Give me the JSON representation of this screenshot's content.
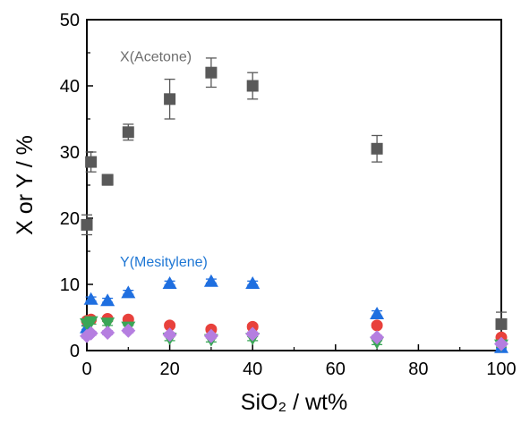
{
  "chart_data": {
    "type": "scatter",
    "xlabel": "SiO₂ / wt%",
    "ylabel": "X or Y / %",
    "xlim": [
      0,
      100
    ],
    "ylim": [
      0,
      50
    ],
    "xticks": [
      0,
      20,
      40,
      60,
      80,
      100
    ],
    "yticks": [
      0,
      10,
      20,
      30,
      40,
      50
    ],
    "grid": false,
    "annotations": [
      {
        "text": "X(Acetone)",
        "color": "#6d6d6d",
        "series": "X(Acetone)"
      },
      {
        "text": "Y(Mesitylene)",
        "color": "#1f77d4",
        "series": "Y(Mesitylene)"
      }
    ],
    "series": [
      {
        "name": "X(Acetone)",
        "marker": "square",
        "color": "#595959",
        "x": [
          0,
          1,
          5,
          10,
          20,
          30,
          40,
          70,
          100
        ],
        "y": [
          19.0,
          28.5,
          25.8,
          33.0,
          38.0,
          42.0,
          40.0,
          30.5,
          4.0
        ],
        "err": [
          1.5,
          1.5,
          0.8,
          1.2,
          3.0,
          2.2,
          2.0,
          2.0,
          1.8
        ]
      },
      {
        "name": "Y(Mesitylene)",
        "marker": "triangle-up",
        "color": "#1f6fe0",
        "x": [
          0,
          1,
          5,
          10,
          20,
          30,
          40,
          70,
          100
        ],
        "y": [
          3.5,
          7.8,
          7.6,
          8.8,
          10.2,
          10.5,
          10.2,
          5.6,
          0.5
        ],
        "err": [
          0.3,
          0.3,
          0.3,
          0.3,
          0.3,
          0.3,
          0.3,
          0.4,
          0.2
        ]
      },
      {
        "marker": "circle",
        "color": "#e8413c",
        "x": [
          0,
          1,
          5,
          10,
          20,
          30,
          40,
          70,
          100
        ],
        "y": [
          4.5,
          4.7,
          4.8,
          4.7,
          3.8,
          3.2,
          3.6,
          3.8,
          2.0
        ],
        "err": [
          0.3,
          0.3,
          0.3,
          0.3,
          0.3,
          0.3,
          0.3,
          0.3,
          0.3
        ]
      },
      {
        "marker": "triangle-down",
        "color": "#3aa657",
        "x": [
          0,
          1,
          5,
          10,
          20,
          30,
          40,
          70,
          100
        ],
        "y": [
          4.0,
          4.3,
          4.1,
          3.5,
          1.8,
          1.6,
          1.8,
          1.2,
          0.8
        ],
        "err": [
          0.3,
          0.3,
          0.3,
          0.3,
          0.3,
          0.3,
          0.3,
          0.3,
          0.3
        ]
      },
      {
        "marker": "diamond",
        "color": "#b57ee0",
        "x": [
          0,
          1,
          5,
          10,
          20,
          30,
          40,
          70,
          100
        ],
        "y": [
          2.2,
          2.6,
          2.7,
          3.0,
          2.4,
          2.2,
          2.5,
          2.0,
          1.0
        ],
        "err": [
          0.3,
          0.3,
          0.3,
          0.3,
          0.3,
          0.3,
          0.3,
          0.3,
          0.3
        ]
      }
    ]
  }
}
